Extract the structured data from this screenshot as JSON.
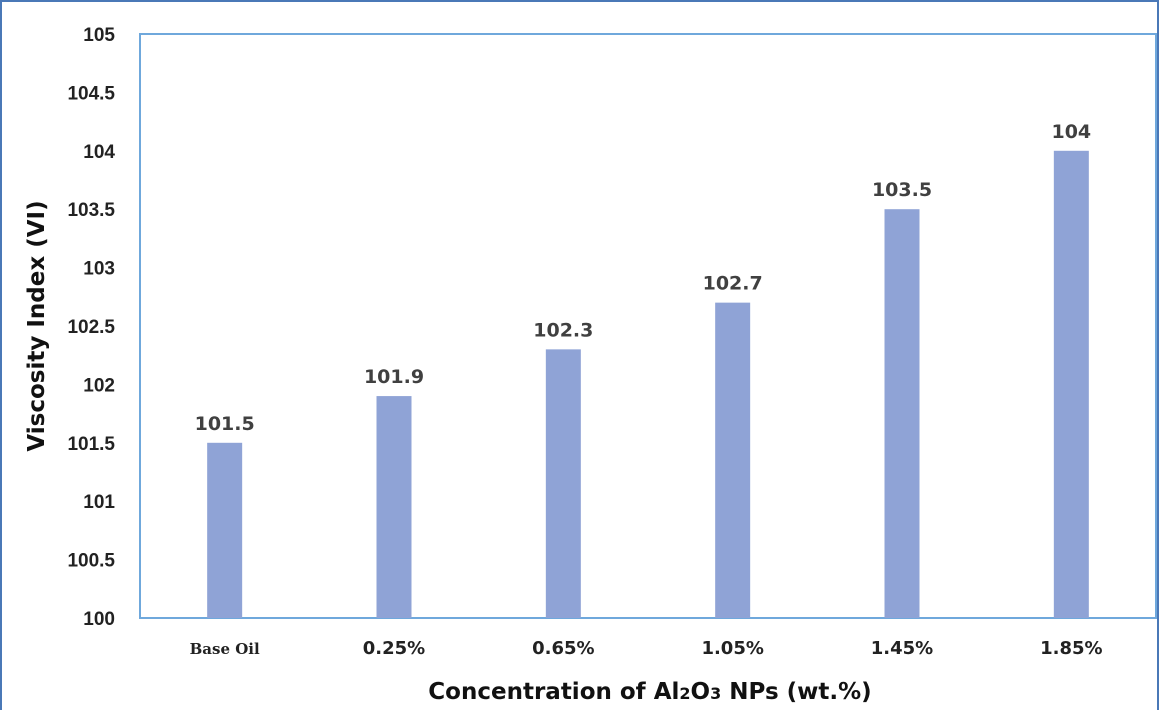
{
  "chart_data": {
    "type": "bar",
    "categories": [
      "Base Oil",
      "0.25%",
      "0.65%",
      "1.05%",
      "1.45%",
      "1.85%"
    ],
    "values": [
      101.5,
      101.9,
      102.3,
      102.7,
      103.5,
      104
    ],
    "value_labels": [
      "101.5",
      "101.9",
      "102.3",
      "102.7",
      "103.5",
      "104"
    ],
    "ylabel": "Viscosity Index (VI)",
    "xlabel_parts": {
      "before": "Concentration of Al",
      "sub1": "2",
      "mid": "O",
      "sub2": "3",
      "after": " NPs (wt.%)"
    },
    "ylim": [
      100,
      105
    ],
    "y_ticks": [
      "100",
      "100.5",
      "101",
      "101.5",
      "102",
      "102.5",
      "103",
      "103.5",
      "104",
      "104.5",
      "105"
    ],
    "grid": false,
    "legend": "none",
    "bar_color": "#8fa3d6",
    "plot_border_color": "#6fa8dc",
    "frame_color": "#4a78b7"
  }
}
